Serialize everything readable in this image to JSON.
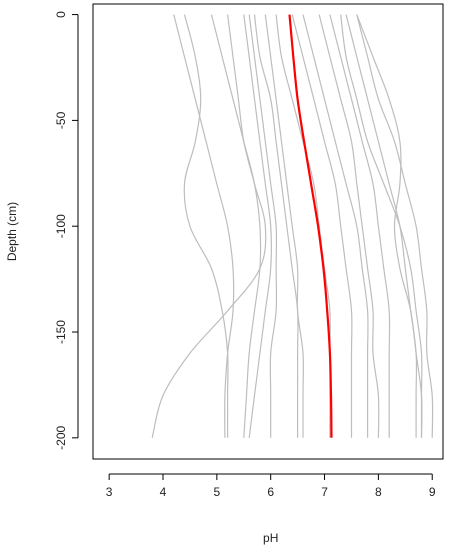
{
  "chart_data": {
    "type": "line",
    "title": "",
    "xlabel": "pH",
    "ylabel": "Depth (cm)",
    "xlim": [
      2.7,
      9.2
    ],
    "ylim": [
      -210,
      5
    ],
    "x_ticks": [
      3,
      4,
      5,
      6,
      7,
      8,
      9
    ],
    "y_ticks": [
      0,
      -50,
      -100,
      -150,
      -200
    ],
    "grid": false,
    "legend": "none",
    "colors": {
      "profiles": "#bdbdbd",
      "mean": "#ff0000",
      "axis": "#000000"
    },
    "depths": [
      0,
      -20,
      -40,
      -60,
      -80,
      -100,
      -120,
      -140,
      -160,
      -180,
      -200
    ],
    "series": [
      {
        "role": "profile",
        "ph": [
          4.2,
          4.4,
          4.6,
          4.8,
          5.0,
          5.2,
          5.3,
          5.3,
          5.2,
          5.15,
          5.15
        ]
      },
      {
        "role": "profile",
        "ph": [
          4.4,
          4.6,
          4.7,
          4.6,
          4.4,
          4.5,
          4.9,
          5.1,
          5.2,
          5.2,
          5.2
        ]
      },
      {
        "role": "profile",
        "ph": [
          5.2,
          5.3,
          5.4,
          5.5,
          5.7,
          5.9,
          5.8,
          5.2,
          4.5,
          4.0,
          3.8
        ]
      },
      {
        "role": "profile",
        "ph": [
          4.9,
          5.1,
          5.3,
          5.5,
          5.7,
          5.8,
          5.8,
          5.7,
          5.6,
          5.55,
          5.5
        ]
      },
      {
        "role": "profile",
        "ph": [
          5.5,
          5.6,
          5.7,
          5.8,
          5.9,
          6.0,
          6.0,
          5.9,
          5.8,
          5.7,
          5.6
        ]
      },
      {
        "role": "profile",
        "ph": [
          5.7,
          5.8,
          6.0,
          6.1,
          6.2,
          6.3,
          6.4,
          6.5,
          6.5,
          6.5,
          6.5
        ]
      },
      {
        "role": "profile",
        "ph": [
          6.1,
          6.2,
          6.4,
          6.6,
          6.8,
          6.9,
          7.0,
          7.1,
          7.1,
          7.1,
          7.1
        ]
      },
      {
        "role": "profile",
        "ph": [
          6.6,
          6.8,
          7.0,
          7.2,
          7.4,
          7.6,
          7.7,
          7.8,
          7.8,
          7.8,
          7.8
        ]
      },
      {
        "role": "profile",
        "ph": [
          7.1,
          7.3,
          7.5,
          7.7,
          7.9,
          8.0,
          8.1,
          8.2,
          8.2,
          8.2,
          8.2
        ]
      },
      {
        "role": "profile",
        "ph": [
          7.4,
          7.6,
          7.8,
          8.0,
          8.2,
          8.4,
          8.5,
          8.6,
          8.7,
          8.7,
          8.7
        ]
      },
      {
        "role": "profile",
        "ph": [
          7.6,
          7.8,
          8.0,
          8.3,
          8.5,
          8.7,
          8.8,
          8.9,
          8.9,
          9.0,
          9.0
        ]
      },
      {
        "role": "profile",
        "ph": [
          7.6,
          7.9,
          8.2,
          8.4,
          8.4,
          8.3,
          8.4,
          8.6,
          8.7,
          8.8,
          8.8
        ]
      },
      {
        "role": "profile",
        "ph": [
          5.9,
          6.0,
          6.1,
          6.2,
          6.3,
          6.4,
          6.5,
          6.5,
          6.6,
          6.6,
          6.6
        ]
      },
      {
        "role": "profile",
        "ph": [
          6.4,
          6.6,
          6.8,
          7.0,
          7.2,
          7.3,
          7.4,
          7.5,
          7.5,
          7.5,
          7.5
        ]
      },
      {
        "role": "profile",
        "ph": [
          6.9,
          7.1,
          7.3,
          7.5,
          7.6,
          7.7,
          7.8,
          7.9,
          7.9,
          8.0,
          8.0
        ]
      },
      {
        "role": "profile",
        "ph": [
          5.6,
          5.7,
          5.8,
          5.9,
          6.0,
          6.1,
          6.1,
          6.1,
          6.0,
          6.0,
          6.0
        ]
      },
      {
        "role": "profile",
        "ph": [
          7.3,
          7.4,
          7.6,
          7.8,
          8.1,
          8.4,
          8.6,
          8.7,
          8.8,
          8.8,
          8.8
        ]
      },
      {
        "role": "mean",
        "ph": [
          6.35,
          6.42,
          6.5,
          6.62,
          6.75,
          6.88,
          6.98,
          7.05,
          7.1,
          7.12,
          7.13
        ]
      }
    ]
  }
}
